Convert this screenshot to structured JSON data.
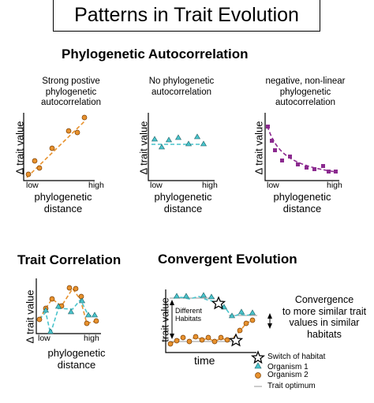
{
  "title": "Patterns in Trait Evolution",
  "section_autocorr": "Phylogenetic Autocorrelation",
  "panels": [
    {
      "caption": [
        "Strong postive",
        "phylogenetic",
        "autocorrelation"
      ]
    },
    {
      "caption": [
        "No phylogenetic",
        "autocorrelation"
      ]
    },
    {
      "caption": [
        "negative, non-linear",
        "phylogenetic",
        "autocorrelation"
      ]
    }
  ],
  "axis": {
    "y_label": "Δ trait value",
    "x_label": [
      "phylogenetic",
      "distance"
    ],
    "low": "low",
    "high": "high"
  },
  "section_trait_corr": "Trait Correlation",
  "section_convergent": "Convergent Evolution",
  "convergent": {
    "y_label": "trait value",
    "x_label": "time",
    "different_habitats": [
      "Different",
      "Habitats"
    ],
    "convergence_text": [
      "Convergence",
      "to more similar trait",
      "values in similar",
      "habitats"
    ]
  },
  "legend": {
    "switch": "Switch of habitat",
    "organism1": "Organism 1",
    "organism2": "Organism 2",
    "optimum": "Trait optimum"
  },
  "colors": {
    "orange": "#e8922e",
    "cyan": "#49c4cc",
    "purple": "#8b2a8f"
  }
}
